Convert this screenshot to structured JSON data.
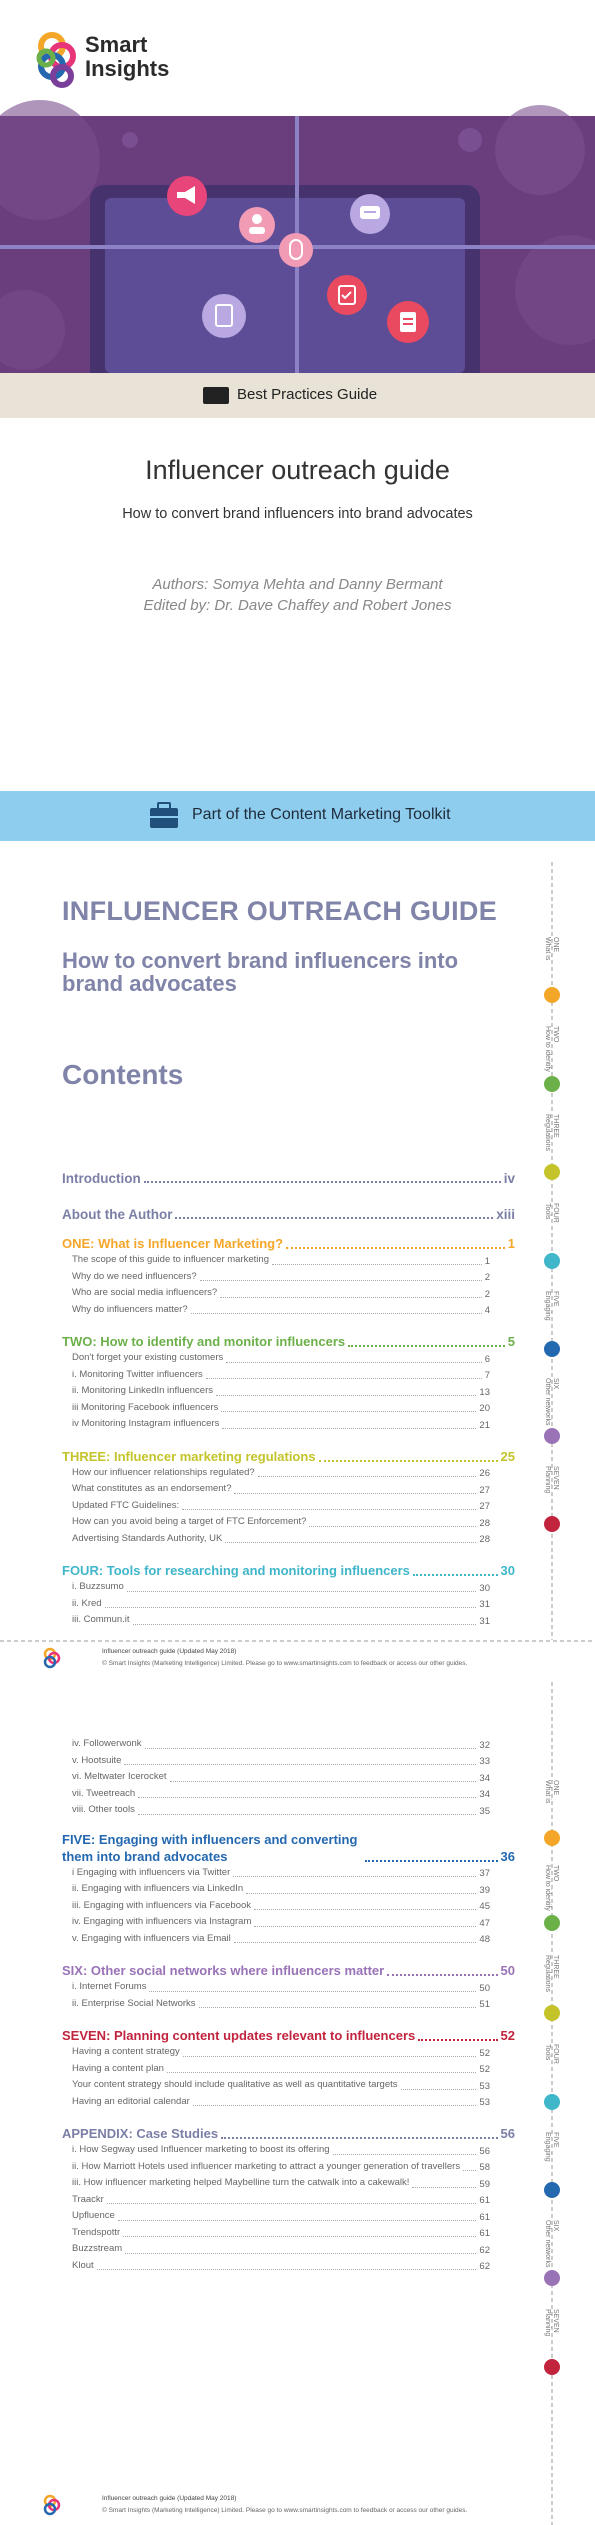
{
  "header": {
    "logo": {
      "line1": "Smart",
      "line2": "Insights"
    }
  },
  "banner": {
    "label": "Best Practices Guide"
  },
  "cover": {
    "title": "Influencer outreach guide",
    "subtitle": "How to convert brand influencers into brand advocates",
    "authors": "Authors: Somya Mehta and Danny Bermant",
    "editors": "Edited by: Dr. Dave Chaffey and Robert Jones"
  },
  "toolkit": {
    "label": "Part of the Content Marketing Toolkit"
  },
  "toc_heading": {
    "title": "INFLUENCER OUTREACH GUIDE",
    "subtitle": "How to convert brand influencers into brand advocates",
    "contents": "Contents"
  },
  "sidebar": [
    {
      "number": "ONE",
      "name": "What is",
      "color": "#f4a629"
    },
    {
      "number": "TWO",
      "name": "How to identify",
      "color": "#6cb04a"
    },
    {
      "number": "THREE",
      "name": "Regulations",
      "color": "#c4c42a"
    },
    {
      "number": "FOUR",
      "name": "Tools",
      "color": "#3fb6c9"
    },
    {
      "number": "FIVE",
      "name": "Engaging",
      "color": "#2468b0"
    },
    {
      "number": "SIX",
      "name": "Other networks",
      "color": "#9a73b7"
    },
    {
      "number": "SEVEN",
      "name": "Planning",
      "color": "#c2243e"
    }
  ],
  "footer": {
    "line1": "Influencer outreach guide (Updated May 2018)",
    "line2": "© Smart Insights (Marketing Intelligence) Limited. Please go to www.smartinsights.com to feedback or access our other guides."
  },
  "toc_pages": [
    {
      "entries": [
        {
          "title": "Introduction",
          "page": "iv",
          "level": "top",
          "color": "#7b7fa6"
        },
        {
          "title": "About the Author",
          "page": "xiii",
          "level": "top",
          "color": "#7b7fa6"
        },
        {
          "title": "ONE: What is Influencer Marketing?",
          "page": "1",
          "level": "section",
          "color": "#f4a629"
        },
        {
          "title": "The scope of this guide to influencer marketing",
          "page": "1",
          "level": "item"
        },
        {
          "title": "Why do we need influencers?",
          "page": "2",
          "level": "item"
        },
        {
          "title": "Who are social media influencers?",
          "page": "2",
          "level": "item"
        },
        {
          "title": "Why do influencers matter?",
          "page": "4",
          "level": "item"
        },
        {
          "title": "TWO: How to identify and monitor influencers",
          "page": "5",
          "level": "section",
          "color": "#6cb04a"
        },
        {
          "title": "Don't forget your existing customers",
          "page": "6",
          "level": "item"
        },
        {
          "title": "i. Monitoring Twitter influencers",
          "page": "7",
          "level": "item"
        },
        {
          "title": "ii. Monitoring LinkedIn influencers",
          "page": "13",
          "level": "item"
        },
        {
          "title": "iii Monitoring Facebook influencers",
          "page": "20",
          "level": "item"
        },
        {
          "title": "iv Monitoring Instagram influencers",
          "page": "21",
          "level": "item"
        },
        {
          "title": "THREE: Influencer marketing regulations",
          "page": "25",
          "level": "section",
          "color": "#c4c42a"
        },
        {
          "title": "How our influencer relationships regulated?",
          "page": "26",
          "level": "item"
        },
        {
          "title": "What constitutes as an endorsement?",
          "page": "27",
          "level": "item"
        },
        {
          "title": "Updated FTC Guidelines:",
          "page": "27",
          "level": "item"
        },
        {
          "title": "How can you avoid being a target of FTC Enforcement?",
          "page": "28",
          "level": "item"
        },
        {
          "title": "Advertising Standards Authority, UK",
          "page": "28",
          "level": "item"
        },
        {
          "title": "FOUR: Tools for researching and monitoring influencers",
          "page": "30",
          "level": "section",
          "color": "#3fb6c9"
        },
        {
          "title": "i. Buzzsumo",
          "page": "30",
          "level": "item"
        },
        {
          "title": "ii. Kred",
          "page": "31",
          "level": "item"
        },
        {
          "title": "iii. Commun.it",
          "page": "31",
          "level": "item"
        }
      ]
    },
    {
      "entries": [
        {
          "title": "iv. Followerwonk",
          "page": "32",
          "level": "item"
        },
        {
          "title": "v. Hootsuite",
          "page": "33",
          "level": "item"
        },
        {
          "title": "vi. Meltwater Icerocket",
          "page": "34",
          "level": "item"
        },
        {
          "title": "vii. Tweetreach",
          "page": "34",
          "level": "item"
        },
        {
          "title": "viii. Other tools",
          "page": "35",
          "level": "item"
        },
        {
          "title": "FIVE: Engaging with influencers and converting them into brand advocates",
          "page": "36",
          "level": "section",
          "color": "#2468b0"
        },
        {
          "title": "i Engaging with influencers via Twitter",
          "page": "37",
          "level": "item"
        },
        {
          "title": "ii. Engaging with influencers via LinkedIn",
          "page": "39",
          "level": "item"
        },
        {
          "title": "iii. Engaging with influencers via Facebook",
          "page": "45",
          "level": "item"
        },
        {
          "title": "iv. Engaging with influencers via Instagram",
          "page": "47",
          "level": "item"
        },
        {
          "title": "v. Engaging with influencers via Email",
          "page": "48",
          "level": "item"
        },
        {
          "title": "SIX: Other social networks where influencers matter",
          "page": "50",
          "level": "section",
          "color": "#9a73b7"
        },
        {
          "title": "i. Internet Forums",
          "page": "50",
          "level": "item"
        },
        {
          "title": "ii. Enterprise Social Networks",
          "page": "51",
          "level": "item"
        },
        {
          "title": "SEVEN: Planning content updates relevant to influencers",
          "page": "52",
          "level": "section",
          "color": "#c2243e"
        },
        {
          "title": "Having a content strategy",
          "page": "52",
          "level": "item"
        },
        {
          "title": "Having a content plan",
          "page": "52",
          "level": "item"
        },
        {
          "title": "Your content strategy should include qualitative as well as quantitative targets",
          "page": "53",
          "level": "item"
        },
        {
          "title": "Having an editorial calendar",
          "page": "53",
          "level": "item"
        },
        {
          "title": "APPENDIX: Case Studies",
          "page": "56",
          "level": "section",
          "color": "#7b7fa6"
        },
        {
          "title": "i. How Segway used Influencer marketing to boost its offering",
          "page": "56",
          "level": "item"
        },
        {
          "title": "ii. How Marriott Hotels used influencer marketing to attract a younger generation of travellers",
          "page": "58",
          "level": "item"
        },
        {
          "title": "iii. How influencer marketing helped Maybelline turn the catwalk into a cakewalk!",
          "page": "59",
          "level": "item"
        },
        {
          "title": "Traackr",
          "page": "61",
          "level": "item"
        },
        {
          "title": "Upfluence",
          "page": "61",
          "level": "item"
        },
        {
          "title": "Trendspottr",
          "page": "61",
          "level": "item"
        },
        {
          "title": "Buzzstream",
          "page": "62",
          "level": "item"
        },
        {
          "title": "Klout",
          "page": "62",
          "level": "item"
        }
      ]
    }
  ]
}
